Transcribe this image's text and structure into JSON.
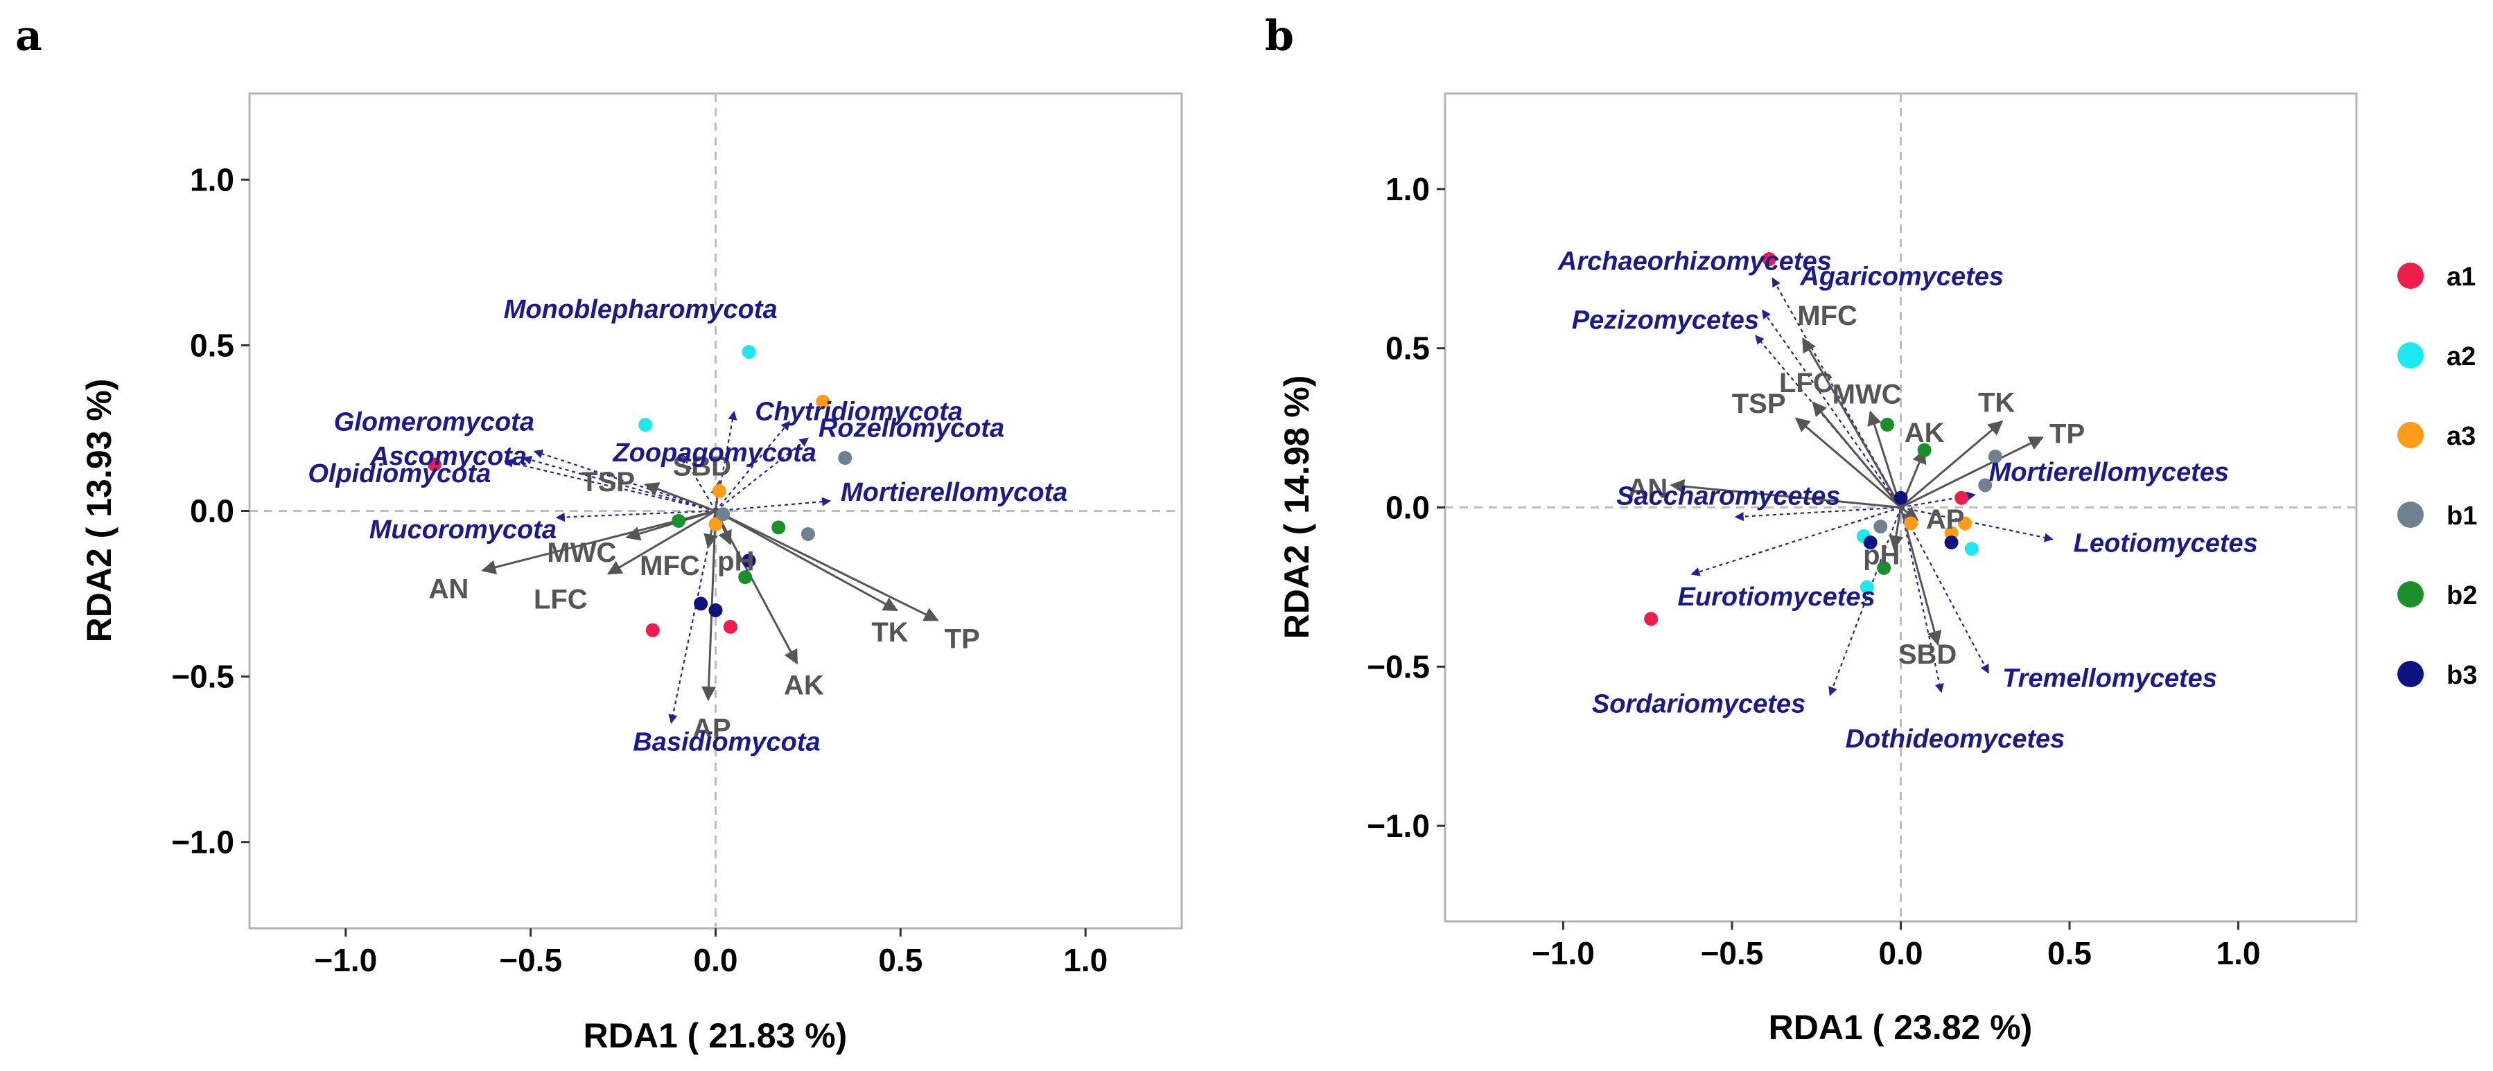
{
  "colors": {
    "env_arrow": "#555555",
    "taxon_arrow": "#23238f",
    "env_text": "#555555",
    "taxon_text": "#1a1a8c",
    "a1": "#ee1c4a",
    "a2": "#1ee8ee",
    "a3": "#ff9a1a",
    "b1": "#6f8090",
    "b2": "#1b8f2a",
    "b3": "#0c1280"
  },
  "legend": [
    {
      "group": "a1",
      "label": "a1"
    },
    {
      "group": "a2",
      "label": "a2"
    },
    {
      "group": "a3",
      "label": "a3"
    },
    {
      "group": "b1",
      "label": "b1"
    },
    {
      "group": "b2",
      "label": "b2"
    },
    {
      "group": "b3",
      "label": "b3"
    }
  ],
  "chart_data": [
    {
      "type": "scatter",
      "panel": "a",
      "xlabel": "RDA1 ( 21.83 %)",
      "ylabel": "RDA2 ( 13.93 %)",
      "xlim": [
        -1.26,
        1.26
      ],
      "ylim": [
        -1.26,
        1.26
      ],
      "xticks": [
        -1.0,
        -0.5,
        0.0,
        0.5,
        1.0
      ],
      "yticks": [
        -1.0,
        -0.5,
        0.0,
        0.5,
        1.0
      ],
      "xtick_labels": [
        "−1.0",
        "−0.5",
        "0.0",
        "0.5",
        "1.0"
      ],
      "ytick_labels": [
        "−1.0",
        "−0.5",
        "0.0",
        "0.5",
        "1.0"
      ],
      "env_vectors": [
        {
          "label": "AN",
          "x": -0.63,
          "y": -0.18
        },
        {
          "label": "TSP",
          "x": -0.19,
          "y": 0.08
        },
        {
          "label": "MWC",
          "x": -0.24,
          "y": -0.08
        },
        {
          "label": "LFC",
          "x": -0.29,
          "y": -0.19
        },
        {
          "label": "MFC",
          "x": -0.02,
          "y": -0.11
        },
        {
          "label": "SBD",
          "x": 0.01,
          "y": 0.09
        },
        {
          "label": "pH",
          "x": 0.04,
          "y": -0.1
        },
        {
          "label": "AP",
          "x": -0.02,
          "y": -0.57
        },
        {
          "label": "AK",
          "x": 0.22,
          "y": -0.46
        },
        {
          "label": "TK",
          "x": 0.49,
          "y": -0.3
        },
        {
          "label": "TP",
          "x": 0.6,
          "y": -0.33
        }
      ],
      "taxa_vectors": [
        {
          "label": "Monoblepharomycota",
          "x": 0.05,
          "y": 0.3
        },
        {
          "label": "Chytridiomycota",
          "x": 0.2,
          "y": 0.27
        },
        {
          "label": "Rozellomycota",
          "x": 0.25,
          "y": 0.22
        },
        {
          "label": "Glomeromycota",
          "x": -0.49,
          "y": 0.18
        },
        {
          "label": "Ascomycota",
          "x": -0.52,
          "y": 0.16
        },
        {
          "label": "Zoopagomycota",
          "x": -0.09,
          "y": 0.17
        },
        {
          "label": "Olpidiomycota",
          "x": -0.57,
          "y": 0.15
        },
        {
          "label": "Mucoromycota",
          "x": -0.43,
          "y": -0.02
        },
        {
          "label": "Mortierellomycota",
          "x": 0.31,
          "y": 0.03
        },
        {
          "label": "Basidiomycota",
          "x": -0.12,
          "y": -0.64
        }
      ],
      "samples": [
        {
          "group": "a1",
          "x": -0.76,
          "y": 0.14
        },
        {
          "group": "a1",
          "x": -0.17,
          "y": -0.36
        },
        {
          "group": "a1",
          "x": 0.04,
          "y": -0.35
        },
        {
          "group": "a2",
          "x": -0.19,
          "y": 0.26
        },
        {
          "group": "a2",
          "x": 0.09,
          "y": 0.48
        },
        {
          "group": "a3",
          "x": 0.01,
          "y": 0.06
        },
        {
          "group": "a3",
          "x": 0.0,
          "y": -0.04
        },
        {
          "group": "a3",
          "x": 0.29,
          "y": 0.33
        },
        {
          "group": "b1",
          "x": 0.35,
          "y": 0.16
        },
        {
          "group": "b1",
          "x": 0.25,
          "y": -0.07
        },
        {
          "group": "b1",
          "x": 0.02,
          "y": -0.01
        },
        {
          "group": "b2",
          "x": -0.1,
          "y": -0.03
        },
        {
          "group": "b2",
          "x": 0.17,
          "y": -0.05
        },
        {
          "group": "b2",
          "x": 0.08,
          "y": -0.2
        },
        {
          "group": "b3",
          "x": 0.09,
          "y": -0.15
        },
        {
          "group": "b3",
          "x": -0.04,
          "y": -0.28
        },
        {
          "group": "b3",
          "x": 0.0,
          "y": -0.3
        }
      ]
    },
    {
      "type": "scatter",
      "panel": "b",
      "xlabel": "RDA1 ( 23.82 %)",
      "ylabel": "RDA2 ( 14.98 %)",
      "xlim": [
        -1.35,
        1.35
      ],
      "ylim": [
        -1.3,
        1.3
      ],
      "xticks": [
        -1.0,
        -0.5,
        0.0,
        0.5,
        1.0
      ],
      "yticks": [
        -1.0,
        -0.5,
        0.0,
        0.5,
        1.0
      ],
      "xtick_labels": [
        "−1.0",
        "−0.5",
        "0.0",
        "0.5",
        "1.0"
      ],
      "ytick_labels": [
        "−1.0",
        "−0.5",
        "0.0",
        "0.5",
        "1.0"
      ],
      "env_vectors": [
        {
          "label": "MFC",
          "x": -0.29,
          "y": 0.53
        },
        {
          "label": "LFC",
          "x": -0.26,
          "y": 0.33
        },
        {
          "label": "TSP",
          "x": -0.31,
          "y": 0.28
        },
        {
          "label": "MWC",
          "x": -0.09,
          "y": 0.3
        },
        {
          "label": "AN",
          "x": -0.68,
          "y": 0.07
        },
        {
          "label": "AK",
          "x": 0.07,
          "y": 0.18
        },
        {
          "label": "TK",
          "x": 0.3,
          "y": 0.27
        },
        {
          "label": "TP",
          "x": 0.42,
          "y": 0.22
        },
        {
          "label": "AP",
          "x": 0.05,
          "y": -0.04
        },
        {
          "label": "pH",
          "x": -0.02,
          "y": -0.13
        },
        {
          "label": "SBD",
          "x": 0.11,
          "y": -0.43
        }
      ],
      "taxa_vectors": [
        {
          "label": "Agaricomycetes",
          "x": -0.38,
          "y": 0.72
        },
        {
          "label": "Archaeorhizomycetes",
          "x": -0.41,
          "y": 0.62
        },
        {
          "label": "Pezizomycetes",
          "x": -0.43,
          "y": 0.54
        },
        {
          "label": "Mortierellomycetes",
          "x": 0.22,
          "y": 0.04
        },
        {
          "label": "Saccharomycetes",
          "x": -0.49,
          "y": -0.03
        },
        {
          "label": "Leotiomycetes",
          "x": 0.45,
          "y": -0.1
        },
        {
          "label": "Eurotiomycetes",
          "x": -0.62,
          "y": -0.21
        },
        {
          "label": "Sordariomycetes",
          "x": -0.21,
          "y": -0.59
        },
        {
          "label": "Tremellomycetes",
          "x": 0.26,
          "y": -0.52
        },
        {
          "label": "Dothideomycetes",
          "x": 0.12,
          "y": -0.58
        }
      ],
      "samples": [
        {
          "group": "a1",
          "x": -0.39,
          "y": 0.78
        },
        {
          "group": "a1",
          "x": -0.74,
          "y": -0.35
        },
        {
          "group": "a1",
          "x": 0.18,
          "y": 0.03
        },
        {
          "group": "a2",
          "x": -0.1,
          "y": -0.25
        },
        {
          "group": "a2",
          "x": -0.11,
          "y": -0.09
        },
        {
          "group": "a2",
          "x": 0.21,
          "y": -0.13
        },
        {
          "group": "a3",
          "x": 0.19,
          "y": -0.05
        },
        {
          "group": "a3",
          "x": 0.15,
          "y": -0.08
        },
        {
          "group": "a3",
          "x": 0.03,
          "y": -0.05
        },
        {
          "group": "b1",
          "x": 0.28,
          "y": 0.16
        },
        {
          "group": "b1",
          "x": -0.06,
          "y": -0.06
        },
        {
          "group": "b1",
          "x": 0.25,
          "y": 0.07
        },
        {
          "group": "b2",
          "x": -0.04,
          "y": 0.26
        },
        {
          "group": "b2",
          "x": 0.07,
          "y": 0.18
        },
        {
          "group": "b2",
          "x": -0.05,
          "y": -0.19
        },
        {
          "group": "b3",
          "x": 0.0,
          "y": 0.03
        },
        {
          "group": "b3",
          "x": -0.09,
          "y": -0.11
        },
        {
          "group": "b3",
          "x": 0.15,
          "y": -0.11
        }
      ]
    }
  ]
}
